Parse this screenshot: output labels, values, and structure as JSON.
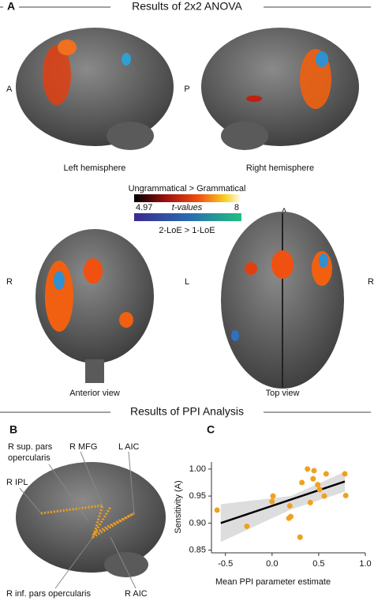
{
  "panel_a": {
    "letter": "A",
    "title": "Results of 2x2 ANOVA",
    "orient_left": "A",
    "orient_right": "P",
    "left_caption": "Left hemisphere",
    "right_caption": "Right hemisphere",
    "legend_contrast_1": "Ungrammatical > Grammatical",
    "legend_min": 4.97,
    "legend_mid": "t-values",
    "legend_max": 8,
    "legend_contrast_2": "2-LoE > 1-LoE",
    "top_orient_a": "A",
    "front_orient_r": "R",
    "front_orient_l": "L",
    "top_orient_r": "R",
    "anterior_caption": "Anterior view",
    "top_caption": "Top view"
  },
  "section_title": "Results of PPI Analysis",
  "panel_b": {
    "letter": "B",
    "labels": [
      "R sup. pars",
      "opercularis",
      "R MFG",
      "L AIC",
      "R IPL",
      "R inf. pars opercularis",
      "R AIC"
    ]
  },
  "panel_c_letter": "C",
  "chart_data": {
    "type": "scatter",
    "x_label": "Mean PPI parameter estimate",
    "y_label": "Sensitivity (A)",
    "color": "#f0a020",
    "x": [
      -0.59,
      -0.27,
      0.0,
      0.01,
      0.19,
      0.2,
      0.18,
      0.3,
      0.32,
      0.38,
      0.45,
      0.41,
      0.44,
      0.49,
      0.51,
      0.56,
      0.58,
      0.78,
      0.79
    ],
    "values": [
      0.924,
      0.894,
      0.94,
      0.95,
      0.932,
      0.912,
      0.909,
      0.874,
      0.975,
      1.0,
      0.997,
      0.938,
      0.982,
      0.971,
      0.962,
      0.95,
      0.991,
      0.991,
      0.951
    ],
    "fit": {
      "x": [
        -0.55,
        0.78
      ],
      "y": [
        0.9,
        0.977
      ],
      "color": "#000000"
    },
    "band": {
      "x": [
        -0.55,
        0.2,
        0.78
      ],
      "lower": [
        0.865,
        0.925,
        0.958
      ],
      "upper": [
        0.935,
        0.95,
        0.995
      ],
      "color": "#dddddd"
    },
    "xlim": [
      -0.65,
      1.0
    ],
    "ylim": [
      0.845,
      1.013
    ],
    "xticks": [
      {
        "value": -0.5,
        "label": "-0.5"
      },
      {
        "value": 0.0,
        "label": "0.0"
      },
      {
        "value": 0.5,
        "label": "0.5"
      },
      {
        "value": 1.0,
        "label": "1.0"
      }
    ],
    "yticks": [
      {
        "value": 0.85,
        "label": "0.85"
      },
      {
        "value": 0.9,
        "label": "0.90"
      },
      {
        "value": 0.95,
        "label": "0.95"
      },
      {
        "value": 1.0,
        "label": "1.00"
      }
    ]
  }
}
